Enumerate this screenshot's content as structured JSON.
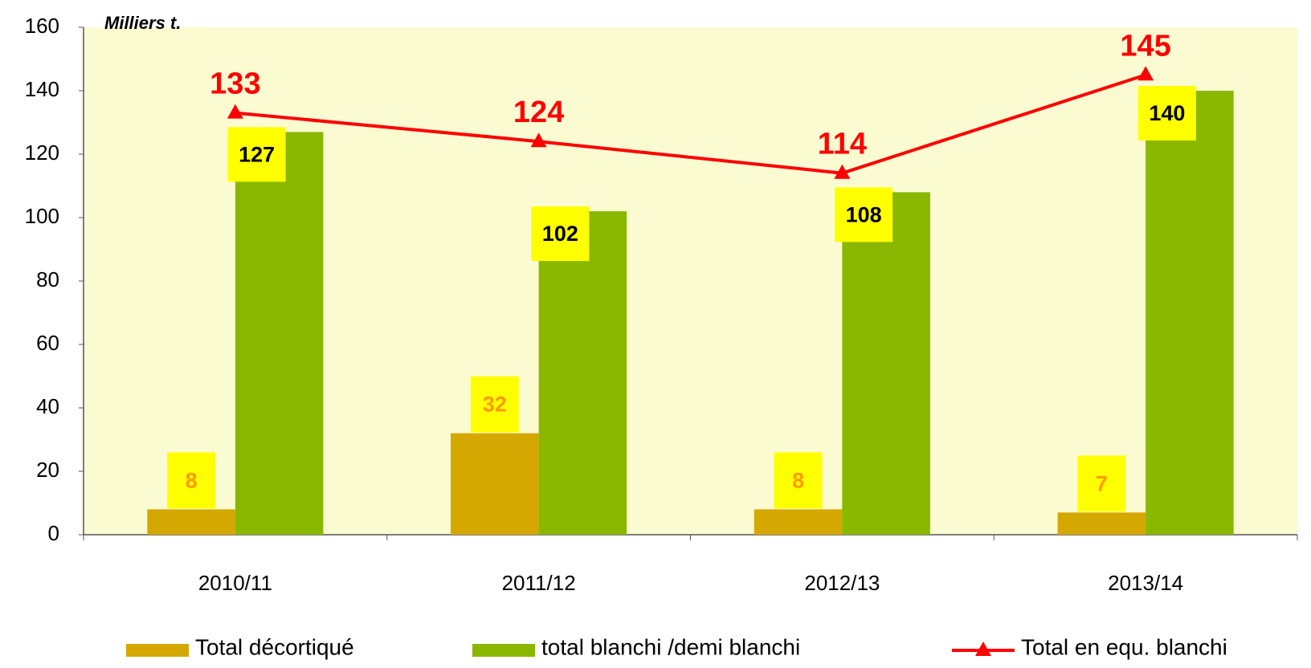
{
  "chart_data": {
    "type": "bar",
    "unit": "Milliers t.",
    "categories": [
      "2010/11",
      "2011/12",
      "2012/13",
      "2013/14"
    ],
    "series": [
      {
        "name": "Total décortiqué",
        "color": "#d4a800",
        "values": [
          8,
          32,
          8,
          7
        ]
      },
      {
        "name": "total blanchi /demi blanchi",
        "color": "#8ab800",
        "values": [
          127,
          102,
          108,
          140
        ]
      },
      {
        "name": "Total en equ. blanchi",
        "color": "#ff0000",
        "type": "line",
        "values": [
          133,
          124,
          114,
          145
        ]
      }
    ],
    "ylim": [
      0,
      160
    ],
    "yticks": [
      0,
      20,
      40,
      60,
      80,
      100,
      120,
      140,
      160
    ],
    "grid": false,
    "legend": "bottom"
  }
}
